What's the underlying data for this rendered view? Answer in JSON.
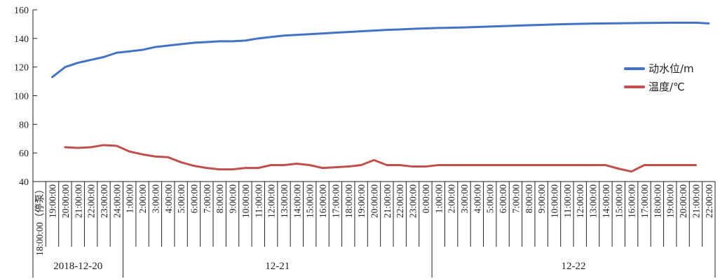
{
  "chart_data": {
    "type": "line",
    "ylim": [
      40,
      160
    ],
    "yticks": [
      40,
      60,
      80,
      100,
      120,
      140,
      160
    ],
    "x": [
      "18:00:00（停泵）",
      "19:00:00",
      "20:00:00",
      "21:00:00",
      "22:00:00",
      "23:00:00",
      "24:00:00",
      "1:00:00",
      "2:00:00",
      "3:00:00",
      "4:00:00",
      "5:00:00",
      "6:00:00",
      "7:00:00",
      "8:00:00",
      "9:00:00",
      "10:00:00",
      "11:00:00",
      "12:00:00",
      "13:00:00",
      "14:00:00",
      "15:00:00",
      "16:00:00",
      "17:00:00",
      "18:00:00",
      "19:00:00",
      "20:00:00",
      "21:00:00",
      "22:00:00",
      "23:00:00",
      "0:00:00",
      "1:00:00",
      "2:00:00",
      "3:00:00",
      "4:00:00",
      "5:00:00",
      "6:00:00",
      "7:00:00",
      "8:00:00",
      "9:00:00",
      "10:00:00",
      "11:00:00",
      "12:00:00",
      "13:00:00",
      "14:00:00",
      "15:00:00",
      "16:00:00",
      "17:00:00",
      "18:00:00",
      "19:00:00",
      "20:00:00",
      "21:00:00",
      "22:00:00"
    ],
    "date_groups": [
      {
        "label": "2018-12-20",
        "start": 0,
        "end": 6
      },
      {
        "label": "12-21",
        "start": 7,
        "end": 30
      },
      {
        "label": "12-22",
        "start": 31,
        "end": 52
      }
    ],
    "series": [
      {
        "name": "动水位/m",
        "color": "#4472c4",
        "values": [
          null,
          113,
          120,
          123,
          125,
          127,
          130,
          131,
          132,
          134,
          135,
          136,
          137,
          137.5,
          138,
          138,
          138.5,
          140,
          141,
          142,
          142.5,
          143,
          143.5,
          144,
          144.5,
          145,
          145.5,
          146,
          146.3,
          146.7,
          147,
          147.3,
          147.5,
          147.7,
          148,
          148.3,
          148.6,
          148.9,
          149.2,
          149.5,
          149.8,
          150,
          150.2,
          150.4,
          150.5,
          150.6,
          150.7,
          150.8,
          150.9,
          151,
          151,
          151,
          150.5
        ]
      },
      {
        "name": "温度/℃",
        "color": "#c0504d",
        "values": [
          null,
          null,
          64,
          63.5,
          64,
          65.5,
          65,
          61,
          59,
          57.5,
          57,
          53.5,
          51,
          49.5,
          48.5,
          48.5,
          49.5,
          49.5,
          51.5,
          51.5,
          52.5,
          51.5,
          49.5,
          50,
          50.5,
          51.5,
          55,
          51.5,
          51.5,
          50.5,
          50.5,
          51.5,
          51.5,
          51.5,
          51.5,
          51.5,
          51.5,
          51.5,
          51.5,
          51.5,
          51.5,
          51.5,
          51.5,
          51.5,
          51.5,
          49,
          47,
          51.5,
          51.5,
          51.5,
          51.5,
          51.5,
          null
        ]
      }
    ],
    "legend_position": "right"
  }
}
